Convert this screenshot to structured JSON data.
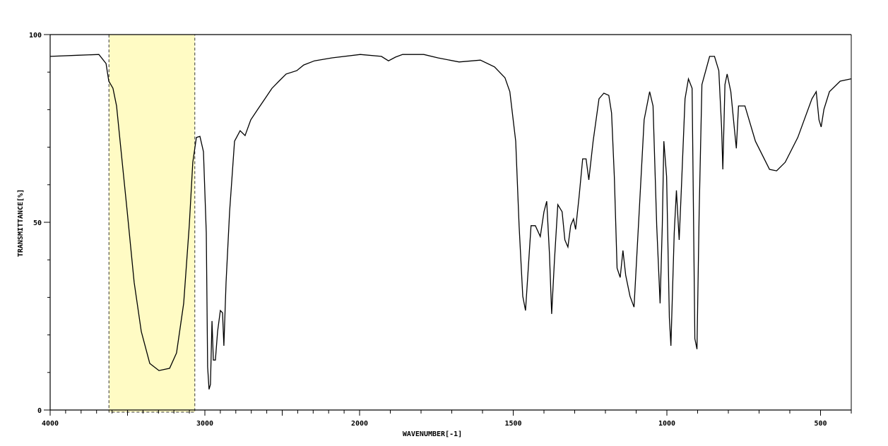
{
  "chart_data": {
    "type": "line",
    "title": "",
    "xlabel": "WAVENUMBER[-1]",
    "ylabel": "TRANSMITTANCE[%]",
    "xlim": [
      4000,
      400
    ],
    "x_scale_break": 2000,
    "ylim": [
      0,
      100
    ],
    "x_ticks": [
      4000,
      3000,
      2000,
      1500,
      1000,
      500
    ],
    "x_tick_labels": [
      "4000",
      "3000",
      "2000",
      "1500",
      "1000",
      "500"
    ],
    "y_ticks": [
      0,
      50,
      100
    ],
    "y_tick_labels": [
      "0",
      "50",
      "100"
    ],
    "grid": false,
    "line_color": "#000000",
    "highlight": {
      "x_range": [
        3620,
        3065
      ],
      "fill": "#fffbc4",
      "border": "dashed"
    },
    "series": [
      {
        "x": [
          4000,
          3822,
          3685,
          3639,
          3621,
          3594,
          3571,
          3548,
          3502,
          3457,
          3411,
          3356,
          3297,
          3228,
          3183,
          3137,
          3101,
          3078,
          3055,
          3032,
          3009,
          2991,
          2982,
          2973,
          2964,
          2954,
          2945,
          2932,
          2918,
          2900,
          2886,
          2877,
          2863,
          2840,
          2808,
          2772,
          2740,
          2703,
          2658,
          2612,
          2566,
          2521,
          2475,
          2406,
          2361,
          2292,
          2178,
          1998,
          1929,
          1906,
          1883,
          1860,
          1791,
          1745,
          1676,
          1607,
          1561,
          1527,
          1511,
          1492,
          1481,
          1469,
          1460,
          1451,
          1442,
          1428,
          1412,
          1400,
          1391,
          1382,
          1375,
          1366,
          1355,
          1341,
          1332,
          1322,
          1313,
          1304,
          1297,
          1286,
          1274,
          1263,
          1254,
          1240,
          1221,
          1205,
          1189,
          1180,
          1171,
          1162,
          1152,
          1143,
          1134,
          1120,
          1107,
          1090,
          1074,
          1056,
          1045,
          1033,
          1022,
          1015,
          1010,
          1001,
          992,
          987,
          976,
          969,
          960,
          953,
          941,
          930,
          918,
          909,
          902,
          895,
          886,
          861,
          845,
          831,
          822,
          818,
          811,
          804,
          792,
          781,
          774,
          767,
          746,
          712,
          666,
          643,
          615,
          574,
          528,
          514,
          505,
          498,
          489,
          471,
          436,
          401
        ],
        "y": [
          94.2,
          94.5,
          94.7,
          92.3,
          87.6,
          85.7,
          81.0,
          71.6,
          52.8,
          34.0,
          20.9,
          12.4,
          10.5,
          11.1,
          15.2,
          28.4,
          49.1,
          66.0,
          72.6,
          72.9,
          68.8,
          47.2,
          11.5,
          5.5,
          6.8,
          23.7,
          13.3,
          13.3,
          20.9,
          26.5,
          25.9,
          17.1,
          34.0,
          52.8,
          71.6,
          74.4,
          73.1,
          77.3,
          80.1,
          82.9,
          85.7,
          87.6,
          89.5,
          90.4,
          91.9,
          93.0,
          93.8,
          94.7,
          94.2,
          93.0,
          94.0,
          94.7,
          94.7,
          93.8,
          92.7,
          93.2,
          91.4,
          88.5,
          84.8,
          71.6,
          49.1,
          30.3,
          26.5,
          37.8,
          49.1,
          49.1,
          46.2,
          52.8,
          55.6,
          41.5,
          25.6,
          39.7,
          54.7,
          52.8,
          45.3,
          43.4,
          49.1,
          50.9,
          48.1,
          56.6,
          66.9,
          66.9,
          61.3,
          71.6,
          82.9,
          84.4,
          83.8,
          79.1,
          62.2,
          37.8,
          35.3,
          42.5,
          35.9,
          30.3,
          27.4,
          52.8,
          77.3,
          84.8,
          81.0,
          49.1,
          28.4,
          49.1,
          71.6,
          62.2,
          24.6,
          17.1,
          47.2,
          58.5,
          45.3,
          58.5,
          82.9,
          88.2,
          85.7,
          19.0,
          16.2,
          52.8,
          86.7,
          94.2,
          94.2,
          90.4,
          75.4,
          64.1,
          86.7,
          89.5,
          84.8,
          75.4,
          69.7,
          81.0,
          81.0,
          71.6,
          64.1,
          63.7,
          66.0,
          72.6,
          82.9,
          84.8,
          77.3,
          75.4,
          80.1,
          84.8,
          87.6,
          88.2
        ]
      }
    ]
  }
}
